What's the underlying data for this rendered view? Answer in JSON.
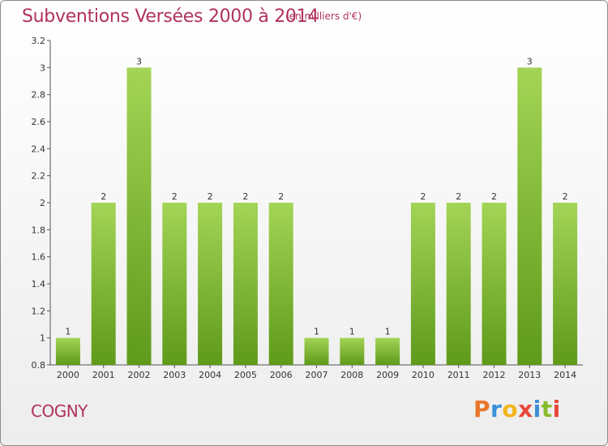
{
  "header": {
    "title": "Subventions Versées 2000 à 2014",
    "subtitle": "(en milliers d'€)"
  },
  "footer": {
    "commune": "COGNY",
    "brand": "Proxiti",
    "brand_colors": [
      "#e8752a",
      "#3a8fd6",
      "#f2b51c",
      "#e8473a",
      "#3a8fd6",
      "#88bb2c",
      "#e8473a"
    ]
  },
  "colors": {
    "title": "#b0325a",
    "bar_light": "#9dd04e",
    "bar_dark": "#5f9a1a",
    "axis": "#555555"
  },
  "chart_data": {
    "type": "bar",
    "title": "Subventions Versées 2000 à 2014",
    "xlabel": "",
    "ylabel": "",
    "categories": [
      "2000",
      "2001",
      "2002",
      "2003",
      "2004",
      "2005",
      "2006",
      "2007",
      "2008",
      "2009",
      "2010",
      "2011",
      "2012",
      "2013",
      "2014"
    ],
    "values": [
      1,
      2,
      3,
      2,
      2,
      2,
      2,
      1,
      1,
      1,
      2,
      2,
      2,
      3,
      2
    ],
    "data_labels": [
      "1",
      "2",
      "3",
      "2",
      "2",
      "2",
      "2",
      "1",
      "1",
      "1",
      "2",
      "2",
      "2",
      "3",
      "2"
    ],
    "ylim": [
      0.8,
      3.2
    ],
    "yticks": [
      0.8,
      1,
      1.2,
      1.4,
      1.6,
      1.8,
      2,
      2.2,
      2.4,
      2.6,
      2.8,
      3,
      3.2
    ],
    "ytick_labels": [
      "0.8",
      "1",
      "1.2",
      "1.4",
      "1.6",
      "1.8",
      "2",
      "2.2",
      "2.4",
      "2.6",
      "2.8",
      "3",
      "3.2"
    ],
    "grid": false
  }
}
